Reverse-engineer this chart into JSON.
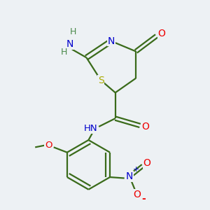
{
  "background_color": "#edf1f4",
  "atom_colors": {
    "C": "#3a6b1a",
    "N": "#0000cc",
    "O": "#ee0000",
    "S": "#aaaa00",
    "H": "#4a8a4a"
  },
  "bond_color": "#3a6b1a",
  "figsize": [
    3.0,
    3.0
  ],
  "dpi": 100
}
